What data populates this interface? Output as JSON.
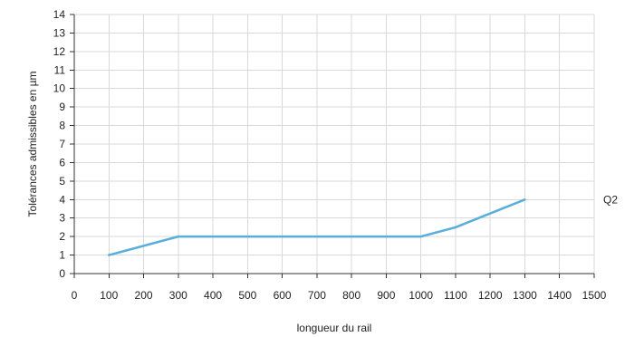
{
  "chart_data": {
    "type": "line",
    "xlabel": "longueur du rail",
    "ylabel": "Tolérances admissibles en µm",
    "xlim": [
      0,
      1500
    ],
    "ylim": [
      0,
      14
    ],
    "x_ticks": [
      "0",
      "100",
      "200",
      "300",
      "400",
      "500",
      "600",
      "700",
      "800",
      "900",
      "1000",
      "1100",
      "1200",
      "1300",
      "1400",
      "1500"
    ],
    "y_ticks": [
      "0",
      "1",
      "2",
      "3",
      "4",
      "5",
      "6",
      "7",
      "8",
      "9",
      "10",
      "11",
      "12",
      "13",
      "14"
    ],
    "grid": true,
    "legend_position": "right",
    "series": [
      {
        "name": "Q2",
        "color": "#5aaedb",
        "x": [
          100,
          300,
          1000,
          1100,
          1300
        ],
        "y": [
          1,
          2,
          2,
          2.5,
          4
        ]
      }
    ]
  }
}
